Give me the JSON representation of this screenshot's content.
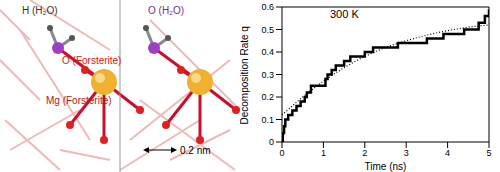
{
  "chart_data": {
    "type": "line",
    "annotation": "300 K",
    "x_label": "Time (ns)",
    "y_label": "Decomposition Rate q",
    "xlim": [
      0,
      5
    ],
    "xticks": [
      0,
      1,
      2,
      3,
      4,
      5
    ],
    "ylim": [
      0,
      0.6
    ],
    "yticks": [
      0,
      0.1,
      0.2,
      0.3,
      0.4,
      0.5,
      0.6
    ],
    "series": [
      {
        "color": "#000000",
        "line_style": "step",
        "x": [
          0,
          0.02,
          0.05,
          0.08,
          0.15,
          0.25,
          0.35,
          0.45,
          0.55,
          0.6,
          0.7,
          1.05,
          1.1,
          1.2,
          1.3,
          1.5,
          1.65,
          2.0,
          2.2,
          2.8,
          3.5,
          3.9,
          4.4,
          4.75,
          4.9,
          5
        ],
        "values": [
          0,
          0.04,
          0.07,
          0.1,
          0.12,
          0.14,
          0.16,
          0.18,
          0.2,
          0.22,
          0.25,
          0.28,
          0.3,
          0.32,
          0.34,
          0.36,
          0.38,
          0.4,
          0.42,
          0.44,
          0.46,
          0.48,
          0.5,
          0.53,
          0.56,
          0.59
        ]
      },
      {
        "color": "#000000",
        "line_style": "dotted",
        "x": [
          0,
          0.5,
          1,
          1.5,
          2,
          2.5,
          3,
          3.5,
          4,
          4.5,
          5
        ],
        "values": [
          0.12,
          0.2,
          0.27,
          0.33,
          0.38,
          0.42,
          0.45,
          0.475,
          0.495,
          0.51,
          0.52
        ]
      }
    ]
  },
  "diagram": {
    "labels": [
      "H (H₂O)",
      "O (H₂O)",
      "O (Forsterite)",
      "Mg (Forsterite)"
    ],
    "scale_bar": "0.2 nm"
  }
}
